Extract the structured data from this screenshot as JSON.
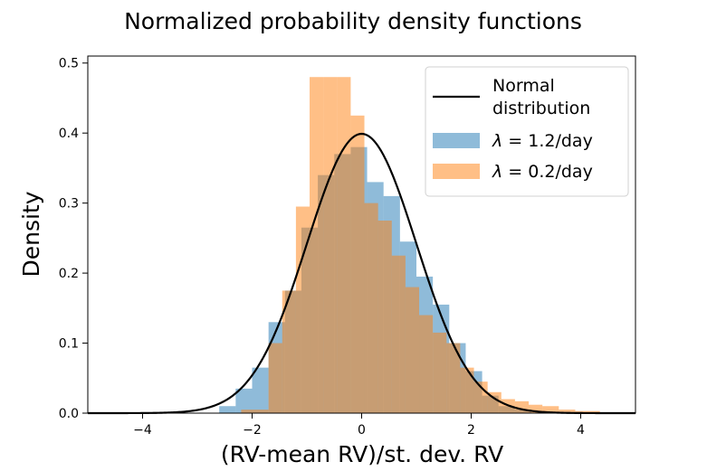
{
  "chart_data": {
    "type": "histogram",
    "title": "Normalized probability density functions",
    "xlabel": "(RV-mean RV)/st. dev. RV",
    "ylabel": "Density",
    "xlim": [
      -5,
      5
    ],
    "ylim": [
      0,
      0.51
    ],
    "xticks": [
      -4,
      -2,
      0,
      2,
      4
    ],
    "xtick_labels": [
      "−4",
      "−2",
      "0",
      "2",
      "4"
    ],
    "yticks": [
      0.0,
      0.1,
      0.2,
      0.3,
      0.4,
      0.5
    ],
    "ytick_labels": [
      "0.0",
      "0.1",
      "0.2",
      "0.3",
      "0.4",
      "0.5"
    ],
    "legend_position": "top-right",
    "series": [
      {
        "name": "λ = 1.2/day",
        "legend_prefix": "λ",
        "legend_suffix": " = 1.2/day",
        "color": "#1f77b4",
        "opacity": 0.5,
        "bins": [
          {
            "x0": -2.6,
            "x1": -2.3,
            "density": 0.01
          },
          {
            "x0": -2.3,
            "x1": -2.0,
            "density": 0.035
          },
          {
            "x0": -2.0,
            "x1": -1.7,
            "density": 0.065
          },
          {
            "x0": -1.7,
            "x1": -1.4,
            "density": 0.13
          },
          {
            "x0": -1.4,
            "x1": -1.1,
            "density": 0.175
          },
          {
            "x0": -1.1,
            "x1": -0.8,
            "density": 0.265
          },
          {
            "x0": -0.8,
            "x1": -0.5,
            "density": 0.34
          },
          {
            "x0": -0.5,
            "x1": -0.2,
            "density": 0.37
          },
          {
            "x0": -0.2,
            "x1": 0.1,
            "density": 0.38
          },
          {
            "x0": 0.1,
            "x1": 0.4,
            "density": 0.33
          },
          {
            "x0": 0.4,
            "x1": 0.7,
            "density": 0.31
          },
          {
            "x0": 0.7,
            "x1": 1.0,
            "density": 0.245
          },
          {
            "x0": 1.0,
            "x1": 1.3,
            "density": 0.195
          },
          {
            "x0": 1.3,
            "x1": 1.6,
            "density": 0.155
          },
          {
            "x0": 1.6,
            "x1": 1.9,
            "density": 0.1
          },
          {
            "x0": 1.9,
            "x1": 2.2,
            "density": 0.06
          },
          {
            "x0": 2.2,
            "x1": 2.5,
            "density": 0.025
          },
          {
            "x0": 2.5,
            "x1": 2.8,
            "density": 0.01
          },
          {
            "x0": 2.8,
            "x1": 3.1,
            "density": 0.005
          }
        ]
      },
      {
        "name": "λ = 0.2/day",
        "legend_prefix": "λ",
        "legend_suffix": " = 0.2/day",
        "color": "#ff7f0e",
        "opacity": 0.5,
        "bins": [
          {
            "x0": -2.2,
            "x1": -1.7,
            "density": 0.005
          },
          {
            "x0": -1.7,
            "x1": -1.45,
            "density": 0.1
          },
          {
            "x0": -1.45,
            "x1": -1.2,
            "density": 0.175
          },
          {
            "x0": -1.2,
            "x1": -0.95,
            "density": 0.295
          },
          {
            "x0": -0.95,
            "x1": -0.7,
            "density": 0.48
          },
          {
            "x0": -0.7,
            "x1": -0.45,
            "density": 0.48
          },
          {
            "x0": -0.45,
            "x1": -0.2,
            "density": 0.48
          },
          {
            "x0": -0.2,
            "x1": 0.05,
            "density": 0.425
          },
          {
            "x0": 0.05,
            "x1": 0.3,
            "density": 0.3
          },
          {
            "x0": 0.3,
            "x1": 0.55,
            "density": 0.275
          },
          {
            "x0": 0.55,
            "x1": 0.8,
            "density": 0.225
          },
          {
            "x0": 0.8,
            "x1": 1.05,
            "density": 0.18
          },
          {
            "x0": 1.05,
            "x1": 1.3,
            "density": 0.14
          },
          {
            "x0": 1.3,
            "x1": 1.55,
            "density": 0.115
          },
          {
            "x0": 1.55,
            "x1": 1.8,
            "density": 0.1
          },
          {
            "x0": 1.8,
            "x1": 2.05,
            "density": 0.065
          },
          {
            "x0": 2.05,
            "x1": 2.3,
            "density": 0.045
          },
          {
            "x0": 2.3,
            "x1": 2.55,
            "density": 0.03
          },
          {
            "x0": 2.55,
            "x1": 2.8,
            "density": 0.02
          },
          {
            "x0": 2.8,
            "x1": 3.05,
            "density": 0.017
          },
          {
            "x0": 3.05,
            "x1": 3.3,
            "density": 0.012
          },
          {
            "x0": 3.3,
            "x1": 3.6,
            "density": 0.01
          },
          {
            "x0": 3.6,
            "x1": 3.9,
            "density": 0.005
          },
          {
            "x0": 3.9,
            "x1": 4.35,
            "density": 0.003
          }
        ]
      }
    ],
    "curve": {
      "name": "Normal distribution",
      "legend_lines": [
        "Normal",
        "distribution"
      ],
      "type": "line",
      "color": "#000000",
      "mean": 0,
      "std": 1,
      "x_range": [
        -5,
        5
      ]
    }
  }
}
